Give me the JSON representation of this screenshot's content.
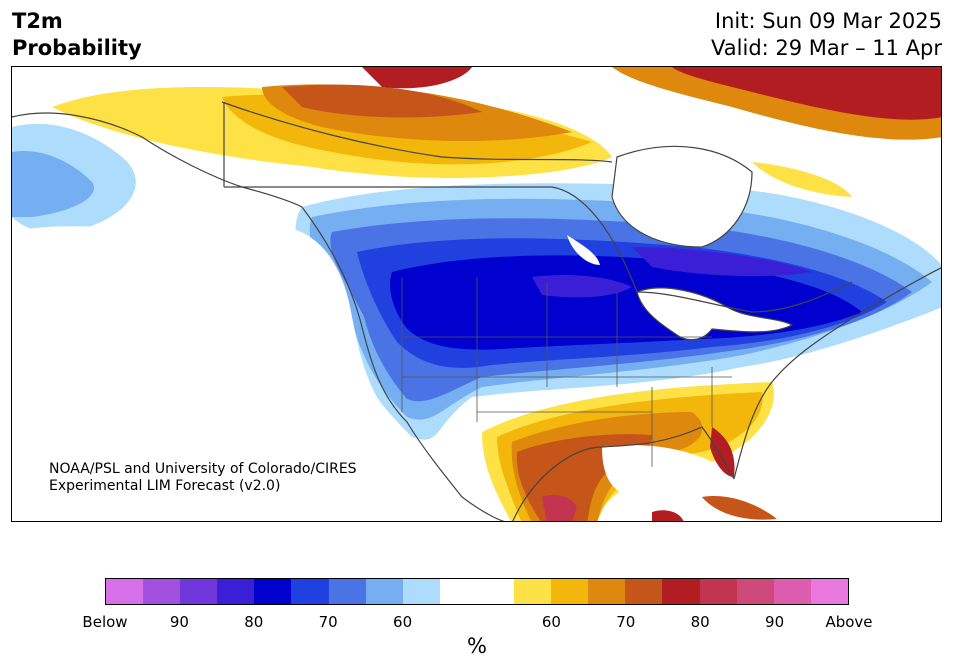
{
  "header": {
    "title_line1": "T2m",
    "title_line2": "Probability",
    "init_label": "Init: Sun 09 Mar 2025",
    "valid_label": "Valid: 29 Mar – 11 Apr"
  },
  "credit": {
    "line1": "NOAA/PSL and University of Colorado/CIRES",
    "line2": "Experimental LIM Forecast (v2.0)"
  },
  "map": {
    "region": "North America",
    "field": "2 m temperature probability",
    "land_color": "#ffffff",
    "border_color": "#444444"
  },
  "colorbar": {
    "unit": "%",
    "colors": [
      "#d670e8",
      "#a250e0",
      "#7038dc",
      "#3a1fd6",
      "#0000cf",
      "#2040e0",
      "#4a74e6",
      "#76aef2",
      "#aedcfc",
      "#ffffff",
      "#ffffff",
      "#fee144",
      "#f3b70b",
      "#de880e",
      "#c55518",
      "#b21d21",
      "#c23450",
      "#cf4a7a",
      "#dc5cb0",
      "#e878de"
    ],
    "tick_labels": [
      "Below",
      "90",
      "80",
      "70",
      "60",
      "60",
      "70",
      "80",
      "90",
      "Above"
    ]
  }
}
